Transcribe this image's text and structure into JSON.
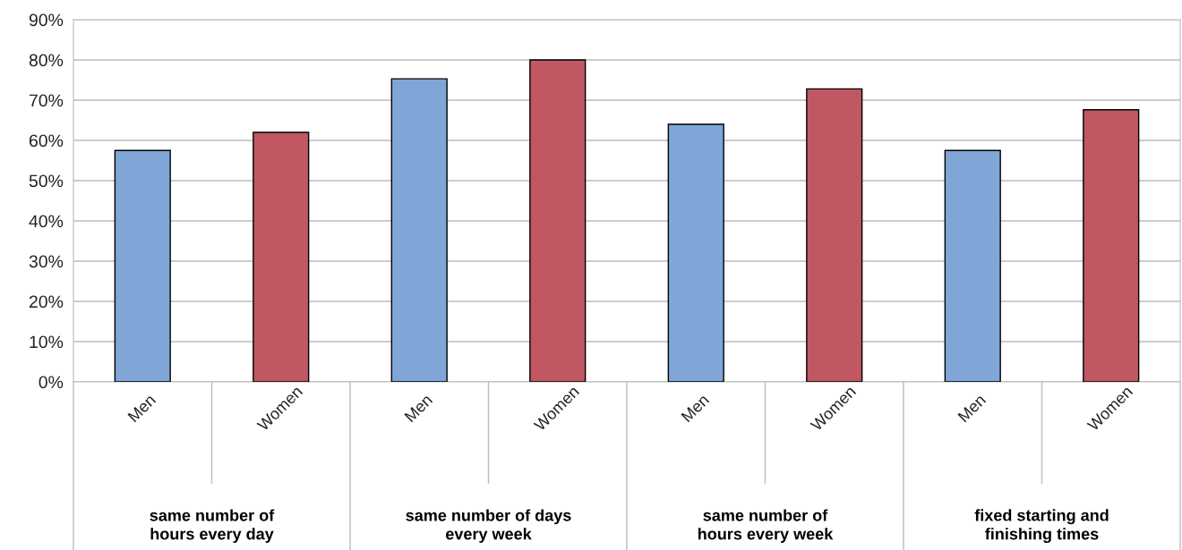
{
  "chart_data": {
    "type": "bar",
    "categories": [
      "Men",
      "Women",
      "Men",
      "Women",
      "Men",
      "Women",
      "Men",
      "Women"
    ],
    "values": [
      57.5,
      62,
      75.3,
      80,
      64,
      72.8,
      57.5,
      67.6
    ],
    "colors": [
      "#7fa6d6",
      "#c05763",
      "#7fa6d6",
      "#c05763",
      "#7fa6d6",
      "#c05763",
      "#7fa6d6",
      "#c05763"
    ],
    "annotations": [
      "same number of\nhours every day",
      "same number of days\nevery week",
      "same number of\nhours every week",
      "fixed starting and\nfinishing times"
    ],
    "ylim": [
      0,
      90
    ],
    "yticks": [
      {
        "value": 0,
        "label": "0%"
      },
      {
        "value": 10,
        "label": "10%"
      },
      {
        "value": 20,
        "label": "20%"
      },
      {
        "value": 30,
        "label": "30%"
      },
      {
        "value": 40,
        "label": "40%"
      },
      {
        "value": 50,
        "label": "50%"
      },
      {
        "value": 60,
        "label": "60%"
      },
      {
        "value": 70,
        "label": "70%"
      },
      {
        "value": 80,
        "label": "80%"
      },
      {
        "value": 90,
        "label": "90%"
      }
    ],
    "grid": "y",
    "legend": false
  }
}
